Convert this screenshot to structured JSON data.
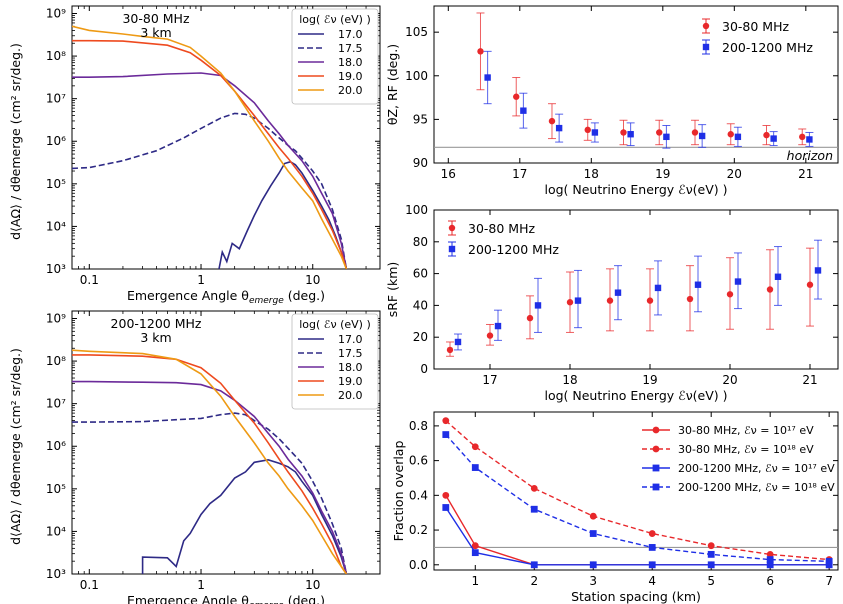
{
  "chart_data": [
    {
      "id": "emergence_3080",
      "type": "line",
      "annotation": [
        "30-80 MHz",
        "3 km"
      ],
      "xlabel": "Emergence Angle θ",
      "xlabel_sub": "emerge",
      "xlabel_tail": " (deg.)",
      "ylabel": "d⟨AΩ⟩ / dθemerge (cm² sr/deg.)",
      "xscale": "log",
      "yscale": "log",
      "xlim": [
        0.07,
        40
      ],
      "ylim": [
        1000,
        1500000000
      ],
      "xticks": [
        0.1,
        1,
        10
      ],
      "xticklabels": [
        "0.1",
        "1",
        "10"
      ],
      "yticks": [
        1000,
        10000,
        100000,
        1000000,
        10000000,
        100000000,
        1000000000
      ],
      "yticklabels": [
        "10³",
        "10⁴",
        "10⁵",
        "10⁶",
        "10⁷",
        "10⁸",
        "10⁹"
      ],
      "legend_title": "log( ℰν (eV) )",
      "series": [
        {
          "name": "17.0",
          "color": "#2e2a86",
          "dash": "",
          "x": [
            1.45,
            1.55,
            1.7,
            1.9,
            2.2,
            2.6,
            3.0,
            3.5,
            4.2,
            5.0,
            5.6,
            6.3,
            7.0,
            8.0,
            10,
            12,
            14,
            16,
            18,
            20
          ],
          "y": [
            1000,
            2500,
            1500,
            4000,
            3000,
            8000,
            18000,
            40000,
            90000,
            180000,
            300000,
            330000,
            280000,
            180000,
            70000,
            30000,
            14000,
            6000,
            2500,
            1000
          ]
        },
        {
          "name": "17.5",
          "color": "#2e2a86",
          "dash": "6,3",
          "x": [
            0.07,
            0.1,
            0.2,
            0.4,
            0.7,
            1.0,
            1.5,
            2.0,
            2.5,
            3.0,
            4.0,
            5.0,
            6.0,
            7.0,
            8.0,
            10,
            12,
            15,
            18,
            20
          ],
          "y": [
            230000,
            240000,
            350000,
            600000,
            1200000,
            2000000,
            3500000,
            4500000,
            4300000,
            3500000,
            2000000,
            1200000,
            800000,
            600000,
            400000,
            200000,
            100000,
            25000,
            5000,
            1000
          ]
        },
        {
          "name": "18.0",
          "color": "#6b2a9a",
          "dash": "",
          "x": [
            0.07,
            0.1,
            0.2,
            0.5,
            1.0,
            1.5,
            2.0,
            3.0,
            4.0,
            5.0,
            6.0,
            8.0,
            10,
            12,
            15,
            18,
            20
          ],
          "y": [
            32000000,
            32000000,
            33000000,
            38000000,
            40000000,
            35000000,
            20000000,
            8000000,
            3000000,
            1500000,
            800000,
            350000,
            150000,
            60000,
            20000,
            4000,
            1000
          ]
        },
        {
          "name": "19.0",
          "color": "#ee4a1f",
          "dash": "",
          "x": [
            0.07,
            0.1,
            0.2,
            0.5,
            0.8,
            1.0,
            1.5,
            2.0,
            3.0,
            4.0,
            5.0,
            6.0,
            8.0,
            10,
            12,
            15,
            18,
            20
          ],
          "y": [
            230000000,
            230000000,
            225000000,
            180000000,
            120000000,
            80000000,
            35000000,
            15000000,
            4000000,
            1500000,
            700000,
            400000,
            150000,
            60000,
            25000,
            8000,
            2500,
            1000
          ]
        },
        {
          "name": "20.0",
          "color": "#ee9a14",
          "dash": "",
          "x": [
            0.07,
            0.1,
            0.2,
            0.3,
            0.5,
            0.8,
            1.0,
            1.5,
            2.0,
            3.0,
            4.0,
            5.0,
            6.0,
            8.0,
            10,
            12,
            15,
            18,
            20
          ],
          "y": [
            500000000,
            400000000,
            330000000,
            290000000,
            250000000,
            160000000,
            100000000,
            40000000,
            15000000,
            3000000,
            1000000,
            400000,
            200000,
            80000,
            40000,
            15000,
            5000,
            2000,
            1000
          ]
        }
      ]
    },
    {
      "id": "emergence_2001200",
      "type": "line",
      "annotation": [
        "200-1200 MHz",
        "3 km"
      ],
      "xlabel": "Emergence Angle θ",
      "xlabel_sub": "emerge",
      "xlabel_tail": " (deg.)",
      "ylabel": "d⟨AΩ⟩ / dθemerge (cm² sr/deg.)",
      "xscale": "log",
      "yscale": "log",
      "xlim": [
        0.07,
        40
      ],
      "ylim": [
        1000,
        1500000000
      ],
      "xticks": [
        0.1,
        1,
        10
      ],
      "xticklabels": [
        "0.1",
        "1",
        "10"
      ],
      "yticks": [
        1000,
        10000,
        100000,
        1000000,
        10000000,
        100000000,
        1000000000
      ],
      "yticklabels": [
        "10³",
        "10⁴",
        "10⁵",
        "10⁶",
        "10⁷",
        "10⁸",
        "10⁹"
      ],
      "legend_title": "log( ℰν (eV) )",
      "series": [
        {
          "name": "17.0",
          "color": "#2e2a86",
          "dash": "",
          "x": [
            0.3,
            0.3,
            0.5,
            0.6,
            0.7,
            0.8,
            1.0,
            1.2,
            1.5,
            2.0,
            2.5,
            3.0,
            4.0,
            5.0,
            6.0,
            7.0,
            8.0,
            10,
            12,
            15,
            18,
            20
          ],
          "y": [
            1000,
            2500,
            2400,
            1500,
            6000,
            9000,
            25000,
            45000,
            70000,
            180000,
            250000,
            420000,
            480000,
            400000,
            330000,
            250000,
            150000,
            70000,
            25000,
            8000,
            2500,
            1000
          ]
        },
        {
          "name": "17.5",
          "color": "#2e2a86",
          "dash": "6,3",
          "x": [
            0.07,
            0.1,
            0.3,
            0.6,
            1.0,
            1.5,
            2.0,
            2.5,
            3.0,
            4.0,
            5.0,
            6.0,
            8.0,
            10,
            12,
            15,
            18,
            20
          ],
          "y": [
            3700000,
            3700000,
            3800000,
            4200000,
            4500000,
            5500000,
            6000000,
            5500000,
            4000000,
            2500000,
            1500000,
            900000,
            400000,
            150000,
            60000,
            15000,
            4000,
            1000
          ]
        },
        {
          "name": "18.0",
          "color": "#6b2a9a",
          "dash": "",
          "x": [
            0.07,
            0.1,
            0.3,
            0.6,
            1.0,
            1.5,
            2.0,
            3.0,
            4.0,
            5.0,
            6.0,
            8.0,
            10,
            12,
            15,
            18,
            20
          ],
          "y": [
            33000000,
            33000000,
            32000000,
            31000000,
            28000000,
            20000000,
            12000000,
            5000000,
            2000000,
            1000000,
            500000,
            200000,
            80000,
            30000,
            10000,
            3000,
            1000
          ]
        },
        {
          "name": "19.0",
          "color": "#ee4a1f",
          "dash": "",
          "x": [
            0.07,
            0.1,
            0.3,
            0.6,
            1.0,
            1.5,
            2.0,
            3.0,
            4.0,
            5.0,
            6.0,
            8.0,
            10,
            12,
            15,
            18,
            20
          ],
          "y": [
            140000000,
            140000000,
            130000000,
            110000000,
            70000000,
            30000000,
            12000000,
            3500000,
            1200000,
            500000,
            250000,
            90000,
            35000,
            15000,
            5000,
            1500,
            1000
          ]
        },
        {
          "name": "20.0",
          "color": "#ee9a14",
          "dash": "",
          "x": [
            0.07,
            0.1,
            0.3,
            0.6,
            1.0,
            1.5,
            2.0,
            3.0,
            4.0,
            5.0,
            6.0,
            8.0,
            10,
            12,
            15,
            18,
            20
          ],
          "y": [
            180000000,
            170000000,
            150000000,
            110000000,
            50000000,
            15000000,
            5000000,
            1200000,
            400000,
            200000,
            100000,
            40000,
            18000,
            8000,
            3000,
            1500,
            1000
          ]
        }
      ]
    },
    {
      "id": "zenith_rf",
      "type": "scatter",
      "xlabel": "log( Neutrino Energy ℰν(eV) )",
      "ylabel": "θZ, RF (deg.)",
      "xlim": [
        15.8,
        21.45
      ],
      "ylim": [
        90,
        108
      ],
      "xticks": [
        16,
        17,
        18,
        19,
        20,
        21
      ],
      "xticklabels": [
        "16",
        "17",
        "18",
        "19",
        "20",
        "21"
      ],
      "yticks": [
        90,
        95,
        100,
        105
      ],
      "yticklabels": [
        "90",
        "95",
        "100",
        "105"
      ],
      "hline": 91.8,
      "hline_label": "horizon",
      "series": [
        {
          "name": "30-80 MHz",
          "color": "#e8282b",
          "marker": "circle",
          "x": [
            16.45,
            16.95,
            17.45,
            17.95,
            18.45,
            18.95,
            19.45,
            19.95,
            20.45,
            20.95
          ],
          "y": [
            102.8,
            97.6,
            94.8,
            93.8,
            93.5,
            93.5,
            93.5,
            93.3,
            93.2,
            93.0
          ],
          "err": [
            4.4,
            2.2,
            2.0,
            1.2,
            1.4,
            1.4,
            1.4,
            1.2,
            1.1,
            0.9
          ]
        },
        {
          "name": "200-1200 MHz",
          "color": "#1f2fe6",
          "marker": "square",
          "x": [
            16.55,
            17.05,
            17.55,
            18.05,
            18.55,
            19.05,
            19.55,
            20.05,
            20.55,
            21.05
          ],
          "y": [
            99.8,
            96.0,
            94.0,
            93.5,
            93.3,
            93.0,
            93.1,
            93.0,
            92.8,
            92.7
          ],
          "err": [
            3.0,
            2.0,
            1.6,
            1.1,
            1.3,
            1.3,
            1.3,
            1.1,
            0.8,
            0.8
          ]
        }
      ]
    },
    {
      "id": "s_rf",
      "type": "scatter",
      "xlabel": "log( Neutrino Energy ℰν(eV) )",
      "ylabel": "sRF (km)",
      "xlim": [
        16.3,
        21.35
      ],
      "ylim": [
        0,
        100
      ],
      "xticks": [
        17,
        18,
        19,
        20,
        21
      ],
      "xticklabels": [
        "17",
        "18",
        "19",
        "20",
        "21"
      ],
      "yticks": [
        0,
        20,
        40,
        60,
        80,
        100
      ],
      "yticklabels": [
        "0",
        "20",
        "40",
        "60",
        "80",
        "100"
      ],
      "series": [
        {
          "name": "30-80 MHz",
          "color": "#e8282b",
          "marker": "circle",
          "x": [
            16.5,
            17.0,
            17.5,
            18.0,
            18.5,
            19.0,
            19.5,
            20.0,
            20.5,
            21.0
          ],
          "y": [
            12,
            21,
            32,
            42,
            43,
            43,
            44,
            47,
            50,
            53
          ],
          "lo": [
            8,
            15,
            19,
            23,
            24,
            24,
            24,
            25,
            25,
            27
          ],
          "hi": [
            17,
            28,
            46,
            61,
            63,
            63,
            65,
            70,
            75,
            76
          ]
        },
        {
          "name": "200-1200 MHz",
          "color": "#1f2fe6",
          "marker": "square",
          "x": [
            16.6,
            17.1,
            17.6,
            18.1,
            18.6,
            19.1,
            19.6,
            20.1,
            20.6,
            21.1
          ],
          "y": [
            17,
            27,
            40,
            43,
            48,
            51,
            53,
            55,
            58,
            62
          ],
          "lo": [
            12,
            18,
            23,
            26,
            31,
            34,
            36,
            38,
            40,
            44
          ],
          "hi": [
            22,
            37,
            57,
            62,
            65,
            68,
            71,
            73,
            77,
            81
          ]
        }
      ]
    },
    {
      "id": "overlap",
      "type": "line",
      "xlabel": "Station spacing (km)",
      "ylabel": "Fraction overlap",
      "xlim": [
        0.3,
        7.15
      ],
      "ylim": [
        -0.03,
        0.88
      ],
      "xticks": [
        1,
        2,
        3,
        4,
        5,
        6,
        7
      ],
      "xticklabels": [
        "1",
        "2",
        "3",
        "4",
        "5",
        "6",
        "7"
      ],
      "yticks": [
        0.0,
        0.2,
        0.4,
        0.6,
        0.8
      ],
      "yticklabels": [
        "0.0",
        "0.2",
        "0.4",
        "0.6",
        "0.8"
      ],
      "hline": 0.1,
      "series": [
        {
          "name": "30-80 MHz, ℰν = 10¹⁷ eV",
          "color": "#e8282b",
          "marker": "circle",
          "dash": "",
          "x": [
            0.5,
            1,
            2,
            3,
            4,
            5,
            6,
            7
          ],
          "y": [
            0.4,
            0.11,
            0.0,
            0.0,
            0.0,
            0.0,
            0.0,
            0.0
          ]
        },
        {
          "name": "30-80 MHz, ℰν = 10¹⁸ eV",
          "color": "#e8282b",
          "marker": "circle",
          "dash": "5,3",
          "x": [
            0.5,
            1,
            2,
            3,
            4,
            5,
            6,
            7
          ],
          "y": [
            0.83,
            0.68,
            0.44,
            0.28,
            0.18,
            0.11,
            0.06,
            0.03
          ]
        },
        {
          "name": "200-1200 MHz, ℰν = 10¹⁷ eV",
          "color": "#1f2fe6",
          "marker": "square",
          "dash": "",
          "x": [
            0.5,
            1,
            2,
            3,
            4,
            5,
            6,
            7
          ],
          "y": [
            0.33,
            0.07,
            0.0,
            0.0,
            0.0,
            0.0,
            0.0,
            0.0
          ]
        },
        {
          "name": "200-1200 MHz, ℰν = 10¹⁸ eV",
          "color": "#1f2fe6",
          "marker": "square",
          "dash": "5,3",
          "x": [
            0.5,
            1,
            2,
            3,
            4,
            5,
            6,
            7
          ],
          "y": [
            0.75,
            0.56,
            0.32,
            0.18,
            0.1,
            0.06,
            0.03,
            0.02
          ]
        }
      ]
    }
  ]
}
